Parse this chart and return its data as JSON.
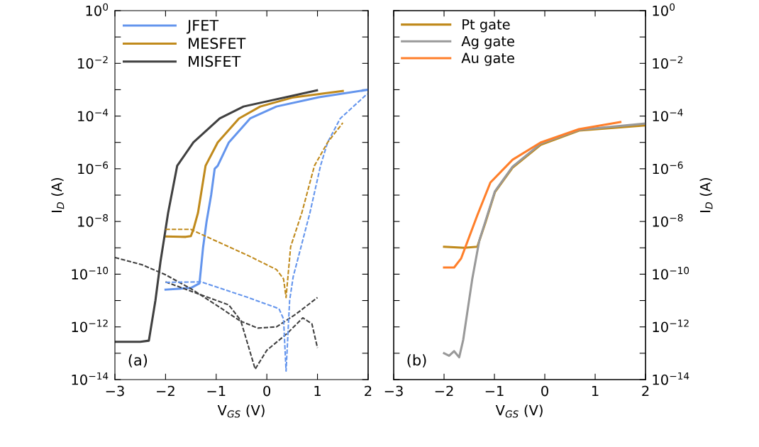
{
  "chart_data": [
    {
      "type": "line",
      "xlabel": "V$_{GS}$ (V)",
      "ylabel": "I$_{D}$ (A)",
      "log": "y",
      "legend": "top left",
      "grid": false,
      "xlim": [
        -3,
        2
      ],
      "xticks": [
        {
          "value": -3,
          "label": "−3"
        },
        {
          "value": -2,
          "label": "−2"
        },
        {
          "value": -1,
          "label": "−1"
        },
        0,
        1,
        2
      ],
      "ylim": [
        1e-14,
        1
      ],
      "yticks": [
        {
          "value": 1,
          "label": "10$^{0}$"
        },
        {
          "value": 0.1,
          "label": null
        },
        {
          "value": 0.01,
          "label": "10$^{−2}$"
        },
        {
          "value": 0.001,
          "label": null
        },
        {
          "value": 0.0001,
          "label": "10$^{−4}$"
        },
        {
          "value": 1e-05,
          "label": null
        },
        {
          "value": 1e-06,
          "label": "10$^{−6}$"
        },
        {
          "value": 1e-07,
          "label": null
        },
        {
          "value": 1e-08,
          "label": "10$^{−8}$"
        },
        {
          "value": 1e-09,
          "label": null
        },
        {
          "value": 1e-10,
          "label": "10$^{−10}$"
        },
        {
          "value": 1e-11,
          "label": null
        },
        {
          "value": 1e-12,
          "label": "10$^{−12}$"
        },
        {
          "value": 1e-13,
          "label": null
        },
        {
          "value": 1e-14,
          "label": "10$^{−14}$"
        }
      ],
      "annotations": [
        "(a)"
      ],
      "series": [
        {
          "name": "JFET",
          "color": "#6495ed",
          "line_style": "solid",
          "x": [
            -2,
            -1.5,
            -1.33,
            -1.26,
            -1.19,
            -1.1,
            -1.03,
            -0.97,
            -0.75,
            -0.33,
            0.19,
            1.03,
            2
          ],
          "values": [
            2.6e-11,
            3e-11,
            4.5e-11,
            1e-09,
            1e-08,
            1e-07,
            1e-06,
            1.3e-06,
            1e-05,
            8.1e-05,
            0.00023,
            0.00052,
            0.001
          ]
        },
        {
          "name": "MESFET",
          "color": "#c08a1c",
          "line_style": "solid",
          "x": [
            -2,
            -1.6,
            -1.5,
            -1.45,
            -1.36,
            -1.21,
            -0.97,
            -0.55,
            -0.13,
            0.5,
            1.5
          ],
          "values": [
            2.7e-09,
            2.6e-09,
            2.8e-09,
            5e-09,
            2.1e-08,
            1.3e-06,
            1e-05,
            8.1e-05,
            0.00023,
            0.0005,
            0.0009
          ]
        },
        {
          "name": "MISFET",
          "color": "#404040",
          "line_style": "solid",
          "x": [
            -3,
            -2.5,
            -2.33,
            -2.2,
            -2.1,
            -2.0,
            -1.95,
            -1.77,
            -1.45,
            -0.93,
            -0.46,
            0.99
          ],
          "values": [
            2.7e-13,
            2.7e-13,
            3e-13,
            1e-11,
            3e-10,
            5e-09,
            2.1e-08,
            1.3e-06,
            1e-05,
            8.1e-05,
            0.00023,
            0.00095
          ]
        },
        {
          "color": "#404040",
          "line_style": "dashed",
          "x": [
            -3,
            -2.47,
            -2,
            -1.5,
            -1,
            -0.51,
            -0.23,
            0,
            0.4,
            0.71,
            0.89,
            1.0
          ],
          "values": [
            4.3e-10,
            2.3e-10,
            9.5e-11,
            2.8e-11,
            6.8e-12,
            1.6e-12,
            2.5e-14,
            1.3e-13,
            5.6e-13,
            2.2e-12,
            1.3e-12,
            1.6e-13
          ]
        },
        {
          "color": "#404040",
          "line_style": "dashed",
          "x": [
            -2,
            -0.75,
            -0.5,
            -0.18,
            0.19,
            0.57,
            1
          ],
          "values": [
            5.1e-11,
            6.8e-12,
            1.6e-12,
            9e-13,
            1e-12,
            3e-12,
            1.3e-11
          ]
        },
        {
          "color": "#6495ed",
          "line_style": "dashed",
          "x": [
            -2,
            -1.3,
            -0.37,
            0.24,
            0.33,
            0.38,
            0.45,
            0.52,
            0.85,
            1.06,
            1.2,
            1.45,
            1.97,
            2
          ],
          "values": [
            4.9e-11,
            5.1e-11,
            1.3e-11,
            4.9e-12,
            2e-12,
            2.1e-14,
            1e-11,
            7.9e-11,
            2.1e-08,
            1.3e-06,
            1e-05,
            8.1e-05,
            0.00066,
            0.0007
          ]
        },
        {
          "color": "#c08a1c",
          "line_style": "dashed",
          "x": [
            -2,
            -1.5,
            -1.2,
            -0.37,
            0.19,
            0.33,
            0.38,
            0.47,
            0.69,
            0.94,
            1.2,
            1.5
          ],
          "values": [
            5e-09,
            5e-09,
            2.7e-09,
            5.1e-10,
            1.5e-10,
            6.6e-11,
            1.3e-11,
            1.1e-09,
            2.1e-08,
            1.3e-06,
            1e-05,
            5.5e-05
          ]
        }
      ]
    },
    {
      "type": "line",
      "xlabel": "V$_{GS}$ (V)",
      "y2label": "I$_{D}$ (A)",
      "log": "y2",
      "legend": "top left",
      "grid": false,
      "xlim": [
        -3,
        2
      ],
      "xticks": [
        {
          "value": -3,
          "label": "−3"
        },
        {
          "value": -2,
          "label": "−2"
        },
        {
          "value": -1,
          "label": "−1"
        },
        0,
        1,
        2
      ],
      "y2lim": [
        1e-14,
        1
      ],
      "y2ticks": [
        {
          "value": 1,
          "label": "10$^{0}$"
        },
        {
          "value": 0.1,
          "label": null
        },
        {
          "value": 0.01,
          "label": "10$^{−2}$"
        },
        {
          "value": 0.001,
          "label": null
        },
        {
          "value": 0.0001,
          "label": "10$^{−4}$"
        },
        {
          "value": 1e-05,
          "label": null
        },
        {
          "value": 1e-06,
          "label": "10$^{−6}$"
        },
        {
          "value": 1e-07,
          "label": null
        },
        {
          "value": 1e-08,
          "label": "10$^{−8}$"
        },
        {
          "value": 1e-09,
          "label": null
        },
        {
          "value": 1e-10,
          "label": "10$^{−10}$"
        },
        {
          "value": 1e-11,
          "label": null
        },
        {
          "value": 1e-12,
          "label": "10$^{−12}$"
        },
        {
          "value": 1e-13,
          "label": null
        },
        {
          "value": 1e-14,
          "label": "10$^{−14}$"
        }
      ],
      "annotations": [
        "(b)"
      ],
      "series": [
        {
          "name": "Pt gate",
          "color": "#c08a1c",
          "axis": "y2",
          "line_style": "solid",
          "x": [
            -2,
            -1.6,
            -1.34,
            -1.18,
            -0.99,
            -0.64,
            -0.08,
            0.68,
            2
          ],
          "values": [
            1.1e-09,
            1e-09,
            1.1e-09,
            8.9e-09,
            1.3e-07,
            1.1e-06,
            8.1e-06,
            2.8e-05,
            4.4e-05
          ]
        },
        {
          "name": "Ag gate",
          "color": "#999999",
          "axis": "y2",
          "line_style": "solid",
          "x": [
            -2,
            -1.9,
            -1.8,
            -1.7,
            -1.62,
            -1.44,
            -1.3,
            -1.18,
            -0.99,
            -0.64,
            -0.08,
            0.68,
            2
          ],
          "values": [
            1e-13,
            8e-14,
            1.2e-13,
            7e-14,
            3.2e-13,
            6.6e-11,
            1.9e-09,
            1e-08,
            1.4e-07,
            1.2e-06,
            9e-06,
            3e-05,
            5.2e-05
          ]
        },
        {
          "name": "Au gate",
          "color": "#ff7f2a",
          "axis": "y2",
          "line_style": "solid",
          "x": [
            -2,
            -1.8,
            -1.66,
            -1.34,
            -1.08,
            -0.64,
            -0.08,
            0.68,
            1.5
          ],
          "values": [
            1.8e-10,
            1.8e-10,
            4e-10,
            1.7e-08,
            3e-07,
            2.2e-06,
            1e-05,
            3.2e-05,
            5.9e-05
          ]
        }
      ]
    }
  ]
}
